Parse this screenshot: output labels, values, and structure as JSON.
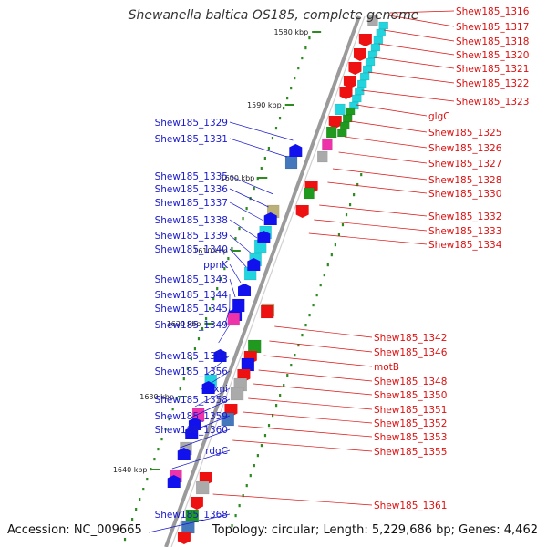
{
  "title": "Shewanella baltica OS185, complete genome",
  "accession": "Accession: NC_009665",
  "topology": "Topology: circular; Length: 5,229,686 bp; Genes: 4,462",
  "colors": {
    "backbone": "#9a9a9a",
    "tick": "#2e8b22",
    "left_label": "#1a1acc",
    "right_label": "#dd1111",
    "cyan": "#22d4dd",
    "red": "#ee1111",
    "blue": "#1111ee",
    "green": "#1f9a1f",
    "gray": "#aaaaaa",
    "olive": "#bbb077",
    "magenta": "#ee33aa",
    "steelblue": "#4477bb"
  },
  "kbp_markers": [
    "1580 kbp",
    "1590 kbp",
    "1600 kbp",
    "1610 kbp",
    "1620 kbp",
    "1630 kbp",
    "1640 kbp"
  ],
  "left_genes": [
    "Shew185_1329",
    "Shew185_1331",
    "Shew185_1335",
    "Shew185_1336",
    "Shew185_1337",
    "Shew185_1338",
    "Shew185_1339",
    "Shew185_1340",
    "ppnK",
    "Shew185_1343",
    "Shew185_1344",
    "Shew185_1345",
    "Shew185_1349",
    "Shew185_1354",
    "Shew185_1356",
    "xni",
    "Shew185_1358",
    "Shew185_1359",
    "Shew185_1360",
    "rdgC",
    "Shew185_1368"
  ],
  "right_genes": [
    "Shew185_1316",
    "Shew185_1317",
    "Shew185_1318",
    "Shew185_1320",
    "Shew185_1321",
    "Shew185_1322",
    "Shew185_1323",
    "glgC",
    "Shew185_1325",
    "Shew185_1326",
    "Shew185_1327",
    "Shew185_1328",
    "Shew185_1330",
    "Shew185_1332",
    "Shew185_1333",
    "Shew185_1334",
    "Shew185_1342",
    "Shew185_1346",
    "motB",
    "Shew185_1348",
    "Shew185_1350",
    "Shew185_1351",
    "Shew185_1352",
    "Shew185_1353",
    "Shew185_1355",
    "Shew185_1361"
  ]
}
